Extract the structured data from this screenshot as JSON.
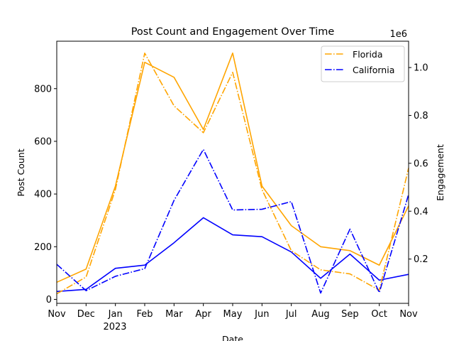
{
  "chart_data": {
    "type": "line",
    "title": "Post Count and Engagement Over Time",
    "xlabel": "Date",
    "ylabel_left": "Post Count",
    "ylabel_right": "Engagement",
    "right_axis_multiplier": "1e6",
    "x": [
      "2022-11",
      "2022-12",
      "2023-01",
      "2023-02",
      "2023-03",
      "2023-04",
      "2023-05",
      "2023-06",
      "2023-07",
      "2023-08",
      "2023-09",
      "2023-10",
      "2023-11"
    ],
    "x_tick_labels": [
      "Nov",
      "Dec",
      "Jan",
      "Feb",
      "Mar",
      "Apr",
      "May",
      "Jun",
      "Jul",
      "Aug",
      "Sep",
      "Oct",
      "Nov"
    ],
    "x_year_label": "2023",
    "ylim_left": [
      -15,
      980
    ],
    "yticks_left": [
      0,
      200,
      400,
      600,
      800
    ],
    "ylim_right": [
      15000,
      1110000
    ],
    "yticks_right": [
      0.2,
      0.4,
      0.6,
      0.8,
      1.0
    ],
    "yticks_right_values": [
      200000,
      400000,
      600000,
      800000,
      1000000
    ],
    "legend_position": "top-right",
    "grid": false,
    "series": [
      {
        "name": "Florida",
        "color": "#FFA500",
        "axis": "left",
        "style": "solid",
        "values": [
          65,
          115,
          430,
          900,
          843,
          645,
          935,
          430,
          280,
          200,
          185,
          130,
          355
        ]
      },
      {
        "name": "California",
        "color": "#0000FF",
        "axis": "left",
        "style": "solid",
        "values": [
          30,
          38,
          118,
          130,
          215,
          310,
          245,
          238,
          180,
          80,
          172,
          73,
          95
        ]
      },
      {
        "name": "Florida",
        "color": "#FFA500",
        "axis": "right",
        "style": "dashdot",
        "values": [
          55000,
          125000,
          490000,
          1060000,
          840000,
          728000,
          980000,
          490000,
          235000,
          155000,
          138000,
          70000,
          580000
        ]
      },
      {
        "name": "California",
        "color": "#0000FF",
        "axis": "right",
        "style": "dashdot",
        "values": [
          178000,
          68000,
          128000,
          160000,
          445000,
          658000,
          405000,
          408000,
          440000,
          58000,
          325000,
          60000,
          470000
        ]
      }
    ],
    "legend": [
      {
        "name": "Florida",
        "color": "#FFA500",
        "style": "dashdot"
      },
      {
        "name": "California",
        "color": "#0000FF",
        "style": "dashdot"
      }
    ]
  }
}
